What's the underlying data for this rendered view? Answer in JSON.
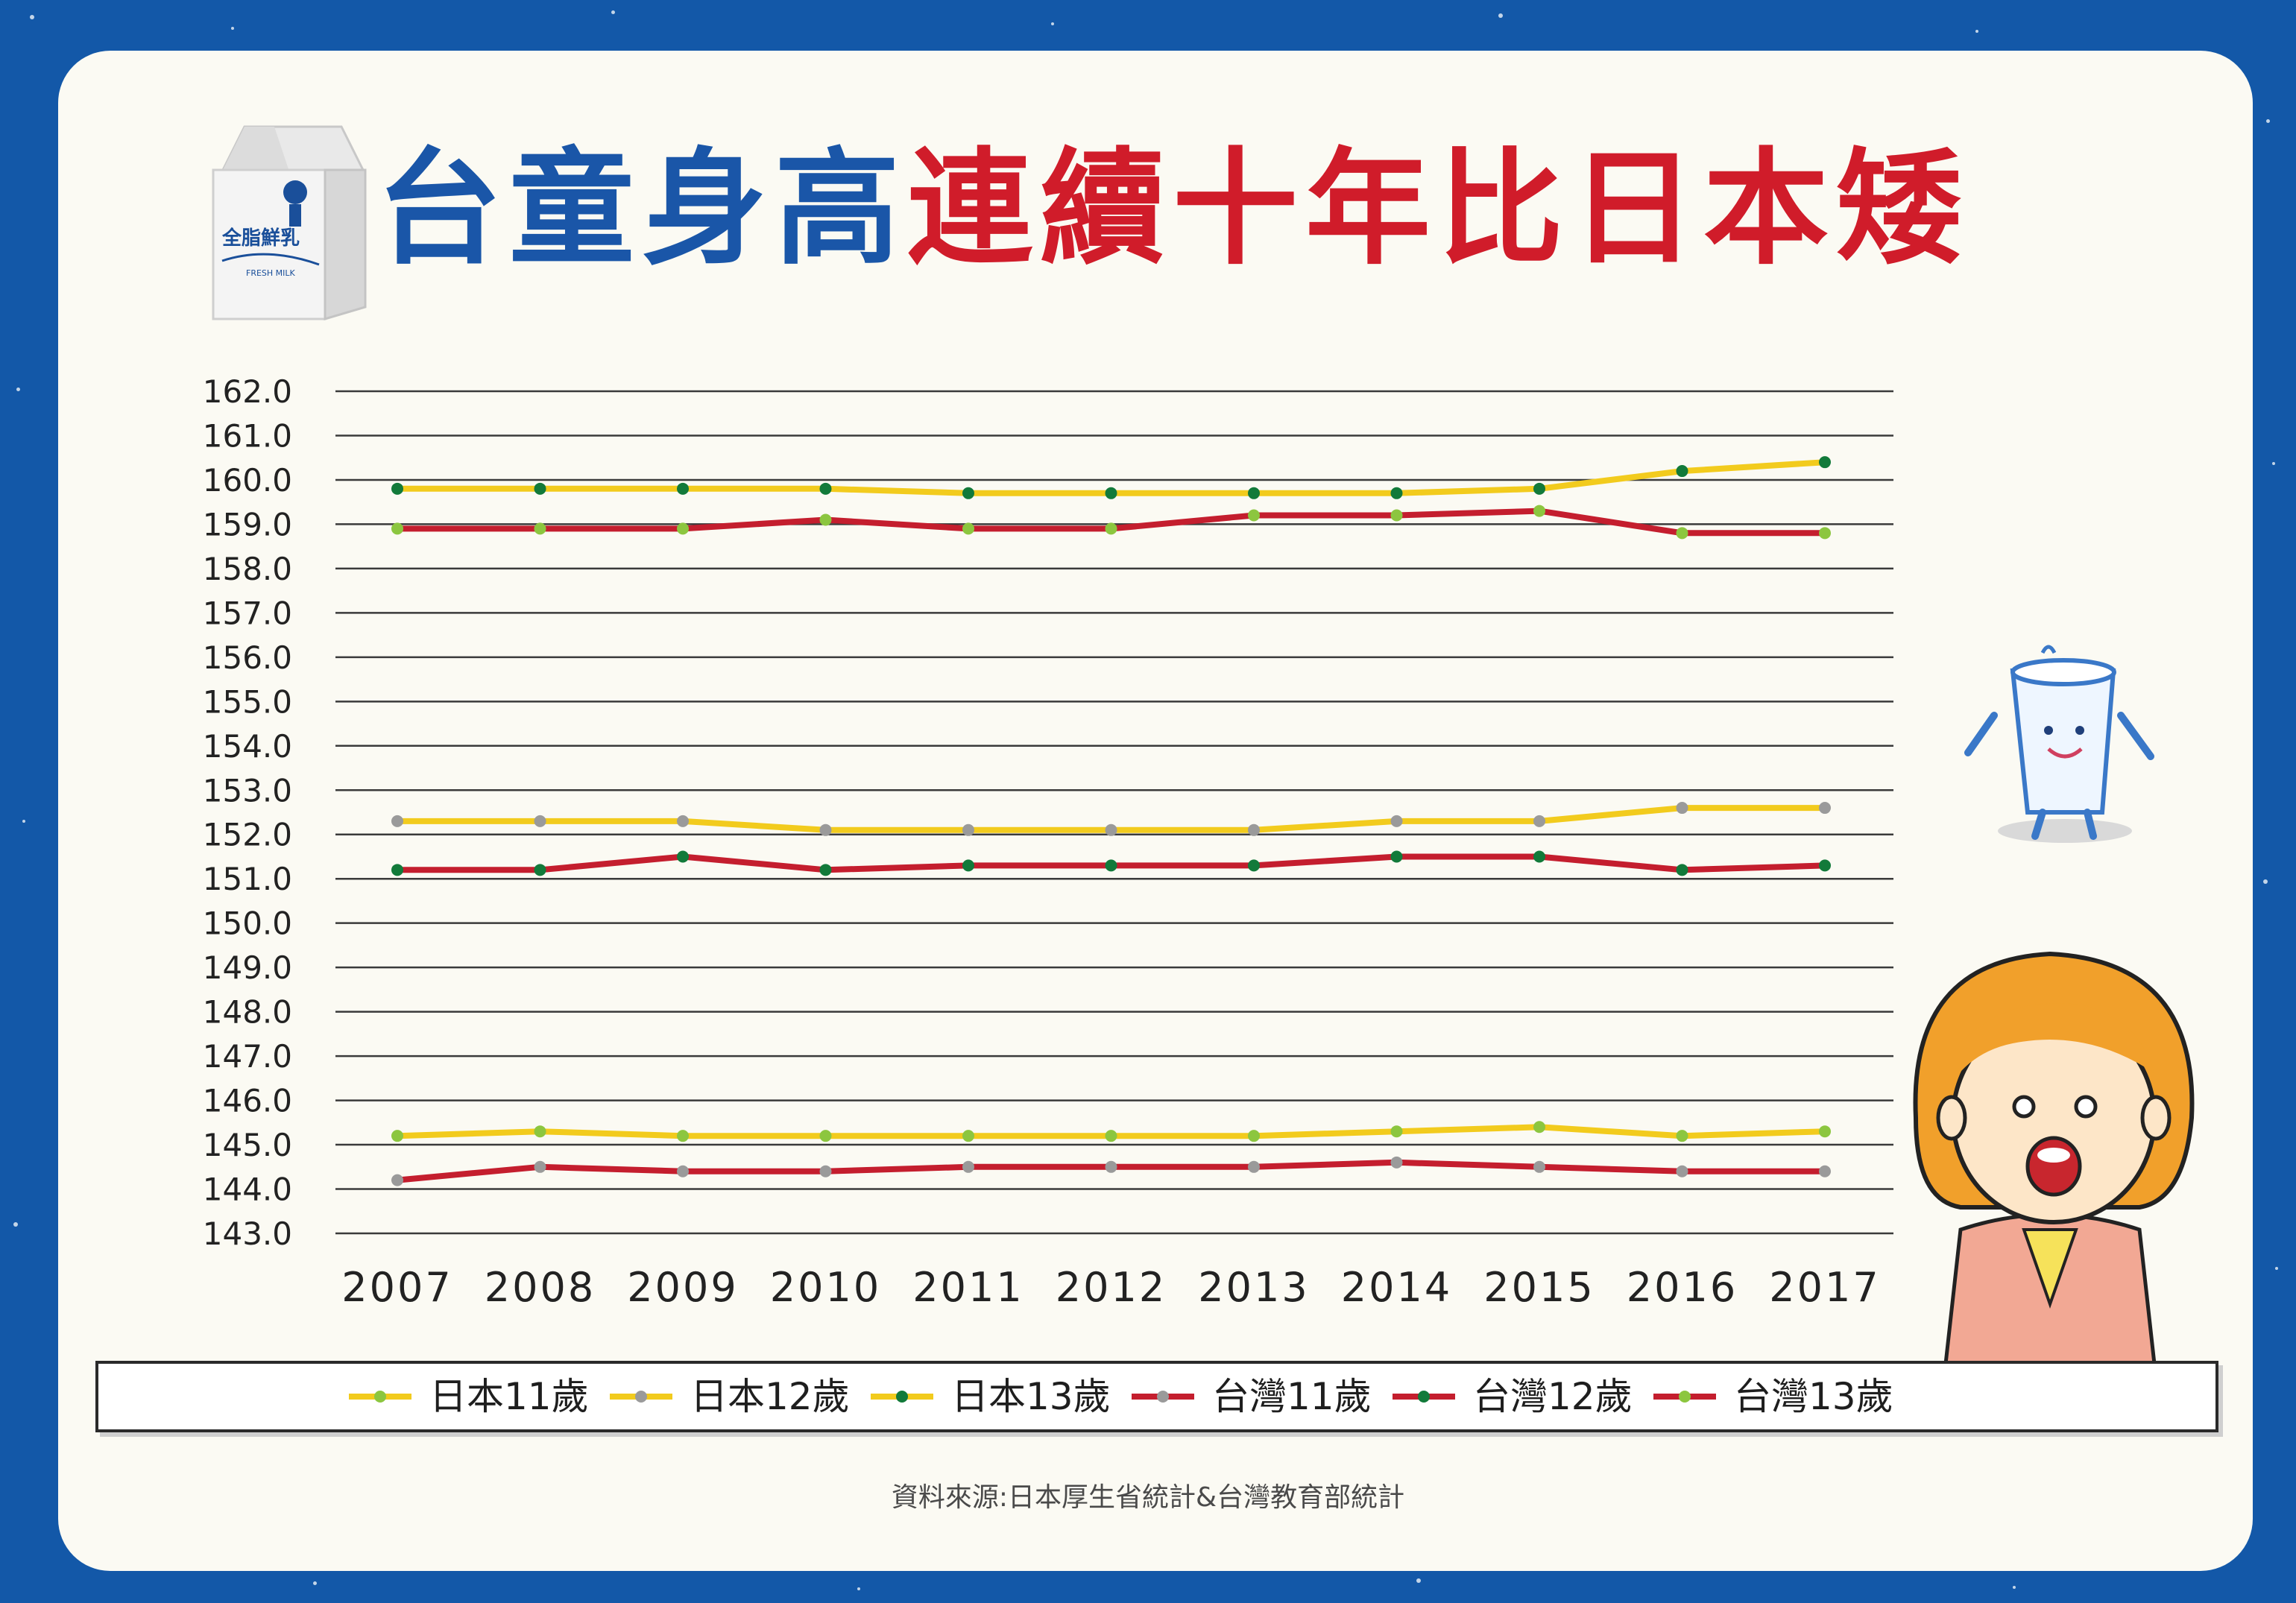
{
  "header": {
    "title_part1": "台童身高",
    "title_part2": "連續十年比日本矮"
  },
  "milk_carton": {
    "label": "全脂鮮乳",
    "sublabel": "FRESH MILK"
  },
  "source": "資料來源:日本厚生省統計&台灣教育部統計",
  "colors": {
    "japan": "#f2cb1d",
    "taiwan": "#c41e2e",
    "frame": "#1358a8",
    "title_blue": "#1a56a8",
    "title_red": "#d01c2a"
  },
  "chart_data": {
    "type": "line",
    "x": [
      "2007",
      "2008",
      "2009",
      "2010",
      "2011",
      "2012",
      "2013",
      "2014",
      "2015",
      "2016",
      "2017"
    ],
    "ylim": [
      143.0,
      162.0
    ],
    "y_ticks": [
      "162.0",
      "161.0",
      "160.0",
      "159.0",
      "158.0",
      "157.0",
      "156.0",
      "155.0",
      "154.0",
      "153.0",
      "152.0",
      "151.0",
      "150.0",
      "149.0",
      "148.0",
      "147.0",
      "146.0",
      "145.0",
      "144.0",
      "143.0"
    ],
    "grid": true,
    "legend_position": "bottom",
    "series": [
      {
        "name": "日本11歲",
        "color": "#f2cb1d",
        "marker": "#8cc63f",
        "values": [
          145.2,
          145.3,
          145.2,
          145.2,
          145.2,
          145.2,
          145.2,
          145.3,
          145.4,
          145.2,
          145.3
        ]
      },
      {
        "name": "日本12歲",
        "color": "#f2cb1d",
        "marker": "#9a9a9a",
        "values": [
          152.3,
          152.3,
          152.3,
          152.1,
          152.1,
          152.1,
          152.1,
          152.3,
          152.3,
          152.6,
          152.6
        ]
      },
      {
        "name": "日本13歲",
        "color": "#f2cb1d",
        "marker": "#127a3a",
        "values": [
          159.8,
          159.8,
          159.8,
          159.8,
          159.7,
          159.7,
          159.7,
          159.7,
          159.8,
          160.2,
          160.4
        ]
      },
      {
        "name": "台灣11歲",
        "color": "#c41e2e",
        "marker": "#9a9a9a",
        "values": [
          144.2,
          144.5,
          144.4,
          144.4,
          144.5,
          144.5,
          144.5,
          144.6,
          144.5,
          144.4,
          144.4
        ]
      },
      {
        "name": "台灣12歲",
        "color": "#c41e2e",
        "marker": "#127a3a",
        "values": [
          151.2,
          151.2,
          151.5,
          151.2,
          151.3,
          151.3,
          151.3,
          151.5,
          151.5,
          151.2,
          151.3
        ]
      },
      {
        "name": "台灣13歲",
        "color": "#c41e2e",
        "marker": "#8cc63f",
        "values": [
          158.9,
          158.9,
          158.9,
          159.1,
          158.9,
          158.9,
          159.2,
          159.2,
          159.3,
          158.8,
          158.8
        ]
      }
    ]
  }
}
